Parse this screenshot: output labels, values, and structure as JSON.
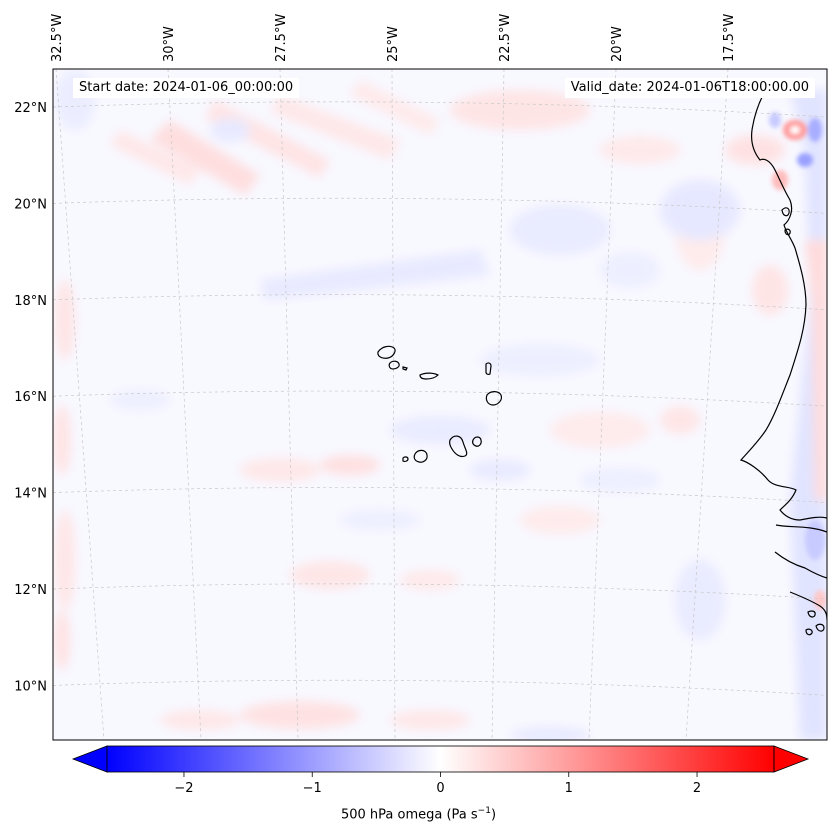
{
  "map": {
    "start_date": "Start date: 2024-01-06_00:00:00",
    "valid_date": "Valid_date: 2024-01-06T18:00:00.00",
    "lon_labels": [
      {
        "text": "32.5°W",
        "lon": -32.5
      },
      {
        "text": "30°W",
        "lon": -30.0
      },
      {
        "text": "27.5°W",
        "lon": -27.5
      },
      {
        "text": "25°W",
        "lon": -25.0
      },
      {
        "text": "22.5°W",
        "lon": -22.5
      },
      {
        "text": "20°W",
        "lon": -20.0
      },
      {
        "text": "17.5°W",
        "lon": -17.5
      }
    ],
    "lat_labels": [
      {
        "text": "22°N",
        "lat": 22
      },
      {
        "text": "20°N",
        "lat": 20
      },
      {
        "text": "18°N",
        "lat": 18
      },
      {
        "text": "16°N",
        "lat": 16
      },
      {
        "text": "14°N",
        "lat": 14
      },
      {
        "text": "12°N",
        "lat": 12
      },
      {
        "text": "10°N",
        "lat": 10
      }
    ],
    "gridlines": true,
    "colors": {
      "negative": "#0000ff",
      "neutral": "#ffffff",
      "positive": "#ff0000",
      "coast": "#000000",
      "grid": "#c8c8c8"
    }
  },
  "colorbar": {
    "ticks": [
      {
        "text": "−2",
        "value": -2
      },
      {
        "text": "−1",
        "value": -1
      },
      {
        "text": "0",
        "value": 0
      },
      {
        "text": "1",
        "value": 1
      },
      {
        "text": "2",
        "value": 2
      }
    ],
    "range": [
      -2.6,
      2.6
    ],
    "label_main": "500 hPa omega (Pa s",
    "label_exp": "−1",
    "label_close": ")",
    "extend": "both"
  }
}
